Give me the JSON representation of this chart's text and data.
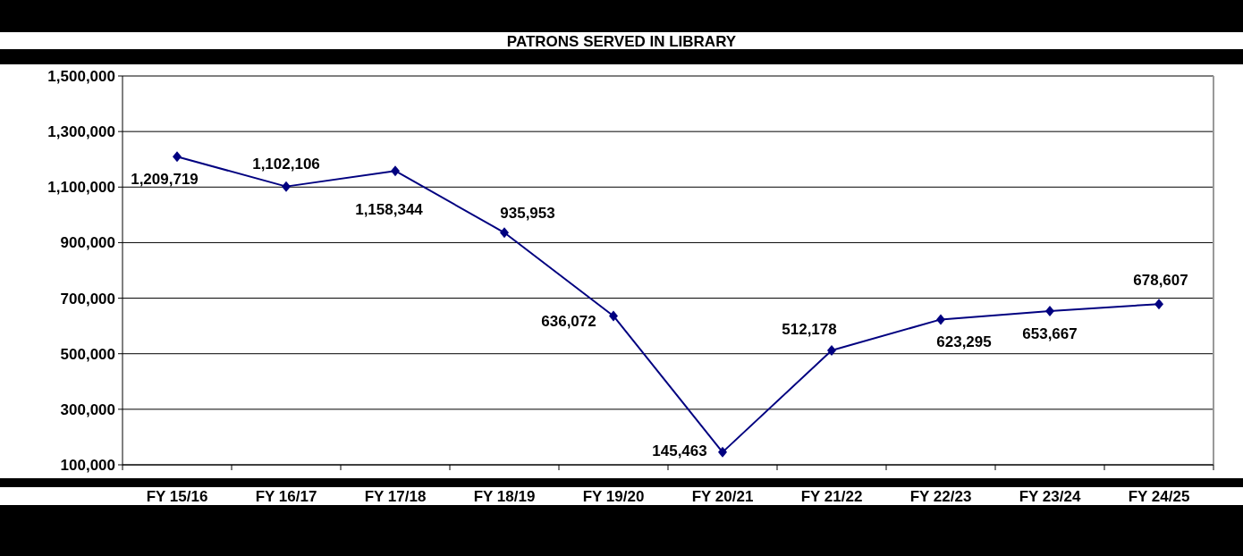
{
  "chart_data": {
    "type": "line",
    "title": "PATRONS  SERVED IN LIBRARY",
    "categories": [
      "FY 15/16",
      "FY 16/17",
      "FY 17/18",
      "FY 18/19",
      "FY 19/20",
      "FY 20/21",
      "FY 21/22",
      "FY 22/23",
      "FY 23/24",
      "FY 24/25"
    ],
    "series": [
      {
        "color": "#000080",
        "values": [
          1209719,
          1102106,
          1158344,
          935953,
          636072,
          145463,
          512178,
          623295,
          653667,
          678607
        ],
        "value_labels": [
          "1,209,719",
          "1,102,106",
          "1,158,344",
          "935,953",
          "636,072",
          "145,463",
          "512,178",
          "623,295",
          "653,667",
          "678,607"
        ]
      }
    ],
    "ylim": [
      100000,
      1500000
    ],
    "yticks": [
      {
        "value": 100000,
        "label": "100,000"
      },
      {
        "value": 300000,
        "label": "300,000"
      },
      {
        "value": 500000,
        "label": "500,000"
      },
      {
        "value": 700000,
        "label": "700,000"
      },
      {
        "value": 900000,
        "label": "900,000"
      },
      {
        "value": 1100000,
        "label": "1,100,000"
      },
      {
        "value": 1300000,
        "label": "1,300,000"
      },
      {
        "value": 1500000,
        "label": "1,500,000"
      }
    ],
    "grid": "y",
    "marker": "diamond",
    "line_style": "solid"
  }
}
